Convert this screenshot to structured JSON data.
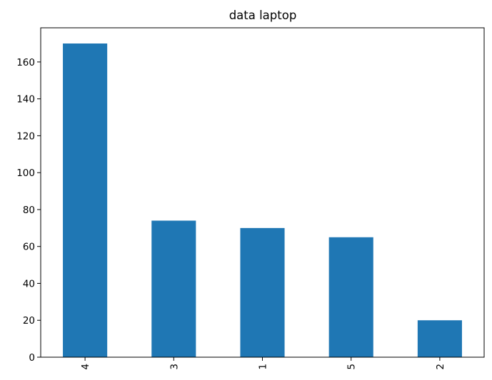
{
  "chart_data": {
    "type": "bar",
    "title": "data laptop",
    "xlabel": "",
    "ylabel": "",
    "categories": [
      "4",
      "3",
      "1",
      "5",
      "2"
    ],
    "values": [
      170,
      74,
      70,
      65,
      20
    ],
    "ylim": [
      0,
      178.5
    ],
    "yticks": [
      0,
      20,
      40,
      60,
      80,
      100,
      120,
      140,
      160
    ],
    "bar_color": "#1f77b4",
    "grid": false,
    "legend": "none",
    "xtick_rotation": "vertical"
  }
}
